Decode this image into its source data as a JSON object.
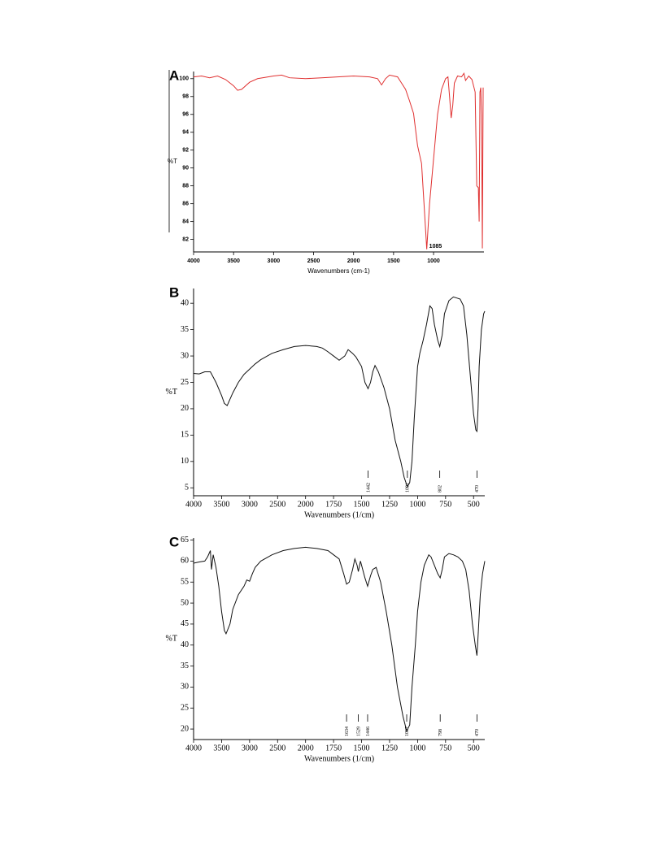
{
  "chart_data": [
    {
      "type": "line",
      "panel_label": "A",
      "x_label": "Wavenumbers (cm-1)",
      "y_label": "%T",
      "color": "#e03030",
      "xlim": [
        4000,
        370
      ],
      "ylim": [
        80.6,
        100.8
      ],
      "xticks": [
        4000,
        3500,
        3000,
        2500,
        2000,
        1500,
        1000
      ],
      "yticks": [
        82,
        84,
        86,
        88,
        90,
        92,
        94,
        96,
        98,
        100
      ],
      "peak_style": "inline",
      "peak_labels": [
        1085
      ],
      "x": [
        4000,
        3900,
        3800,
        3700,
        3600,
        3500,
        3450,
        3400,
        3300,
        3200,
        3000,
        2900,
        2800,
        2600,
        2400,
        2200,
        2000,
        1800,
        1700,
        1650,
        1600,
        1550,
        1450,
        1400,
        1350,
        1300,
        1250,
        1200,
        1150,
        1120,
        1085,
        1050,
        1000,
        950,
        900,
        850,
        820,
        800,
        780,
        760,
        740,
        700,
        650,
        620,
        600,
        560,
        520,
        480,
        460,
        440,
        430,
        420,
        410,
        400,
        390,
        380
      ],
      "values": [
        100.2,
        100.3,
        100.1,
        100.3,
        99.9,
        99.2,
        98.7,
        98.8,
        99.6,
        100.0,
        100.3,
        100.4,
        100.1,
        100.0,
        100.1,
        100.2,
        100.3,
        100.2,
        100.0,
        99.3,
        100.0,
        100.4,
        100.2,
        99.5,
        98.8,
        97.5,
        96.1,
        92.5,
        90.5,
        86.1,
        80.9,
        86.0,
        91.0,
        96.0,
        98.8,
        100.0,
        100.2,
        98.0,
        95.6,
        97.0,
        99.5,
        100.3,
        100.2,
        100.6,
        99.8,
        100.3,
        99.9,
        98.5,
        88.0,
        87.8,
        84.0,
        98.5,
        99.0,
        96.0,
        81.0,
        99.0
      ]
    },
    {
      "type": "line",
      "panel_label": "B",
      "x_label": "Wavenumbers (1/cm)",
      "y_label": "%T",
      "color": "#111111",
      "xlim": [
        4000,
        400
      ],
      "ylim": [
        3.5,
        42.8
      ],
      "x_break": 2000,
      "xticks": [
        4000,
        3500,
        3000,
        2500,
        2000,
        1750,
        1500,
        1250,
        1000,
        750,
        500
      ],
      "yticks": [
        5,
        10,
        15,
        20,
        25,
        30,
        35,
        40
      ],
      "peak_style": "tick",
      "peak_labels": [
        1442,
        1091,
        802,
        470
      ],
      "x": [
        4000,
        3900,
        3800,
        3700,
        3600,
        3500,
        3450,
        3400,
        3300,
        3200,
        3100,
        3000,
        2900,
        2800,
        2600,
        2400,
        2200,
        2000,
        1900,
        1850,
        1800,
        1750,
        1700,
        1650,
        1620,
        1580,
        1550,
        1500,
        1470,
        1442,
        1420,
        1400,
        1380,
        1350,
        1300,
        1250,
        1200,
        1150,
        1120,
        1091,
        1070,
        1050,
        1030,
        1000,
        980,
        950,
        920,
        890,
        870,
        850,
        820,
        802,
        780,
        760,
        720,
        680,
        650,
        620,
        590,
        560,
        540,
        520,
        500,
        480,
        470,
        460,
        450,
        430,
        410,
        400
      ],
      "values": [
        26.7,
        26.6,
        27.0,
        27.0,
        25.0,
        22.5,
        21.0,
        20.6,
        23.0,
        25.0,
        26.5,
        27.5,
        28.5,
        29.3,
        30.5,
        31.2,
        31.8,
        32.0,
        31.8,
        31.5,
        30.8,
        30.0,
        29.2,
        30.0,
        31.2,
        30.5,
        29.8,
        28.0,
        25.0,
        23.8,
        25.0,
        27.0,
        28.2,
        27.0,
        24.0,
        20.0,
        14.0,
        10.0,
        7.0,
        5.2,
        6.0,
        10.0,
        18.0,
        28.0,
        30.5,
        33.0,
        36.0,
        39.5,
        39.0,
        36.0,
        33.0,
        31.8,
        34.0,
        38.0,
        40.5,
        41.2,
        41.0,
        40.8,
        39.5,
        34.0,
        29.0,
        24.0,
        19.0,
        16.0,
        15.7,
        20.0,
        28.0,
        35.0,
        38.0,
        38.5
      ]
    },
    {
      "type": "line",
      "panel_label": "C",
      "x_label": "Wavenumbers (1/cm)",
      "y_label": "%T",
      "color": "#111111",
      "xlim": [
        4000,
        400
      ],
      "ylim": [
        17.5,
        65.5
      ],
      "x_break": 2000,
      "xticks": [
        4000,
        3500,
        3000,
        2500,
        2000,
        1750,
        1500,
        1250,
        1000,
        750,
        500
      ],
      "yticks": [
        20,
        25,
        30,
        35,
        40,
        45,
        50,
        55,
        60,
        65
      ],
      "peak_style": "tick",
      "peak_labels": [
        1634,
        1529,
        1446,
        1097,
        798,
        470
      ],
      "x": [
        4000,
        3900,
        3800,
        3750,
        3700,
        3680,
        3650,
        3600,
        3550,
        3500,
        3450,
        3420,
        3350,
        3300,
        3200,
        3100,
        3050,
        3000,
        2950,
        2900,
        2800,
        2600,
        2400,
        2200,
        2000,
        1900,
        1800,
        1750,
        1700,
        1660,
        1634,
        1610,
        1580,
        1560,
        1540,
        1529,
        1510,
        1490,
        1470,
        1446,
        1420,
        1400,
        1370,
        1330,
        1280,
        1230,
        1180,
        1130,
        1097,
        1070,
        1050,
        1020,
        1000,
        970,
        940,
        900,
        880,
        850,
        820,
        798,
        780,
        760,
        720,
        680,
        640,
        600,
        570,
        540,
        510,
        485,
        470,
        460,
        440,
        420,
        400
      ],
      "values": [
        59.5,
        59.8,
        60.0,
        61.0,
        62.5,
        58.0,
        61.5,
        58.5,
        54.0,
        48.0,
        43.5,
        42.7,
        45.0,
        48.5,
        52.0,
        54.0,
        55.5,
        55.2,
        57.0,
        58.5,
        60.0,
        61.5,
        62.5,
        63.0,
        63.3,
        63.0,
        62.5,
        61.5,
        60.5,
        57.0,
        54.5,
        55.0,
        58.0,
        60.5,
        59.0,
        57.5,
        60.0,
        58.0,
        56.0,
        54.0,
        56.5,
        58.0,
        58.5,
        55.0,
        48.0,
        40.0,
        30.0,
        23.0,
        19.5,
        21.0,
        30.0,
        40.0,
        48.0,
        55.0,
        59.0,
        61.5,
        61.0,
        59.0,
        57.0,
        56.0,
        58.0,
        61.0,
        61.8,
        61.5,
        61.0,
        60.0,
        58.0,
        53.0,
        45.0,
        40.0,
        37.5,
        42.0,
        52.0,
        57.0,
        60.0
      ]
    }
  ]
}
